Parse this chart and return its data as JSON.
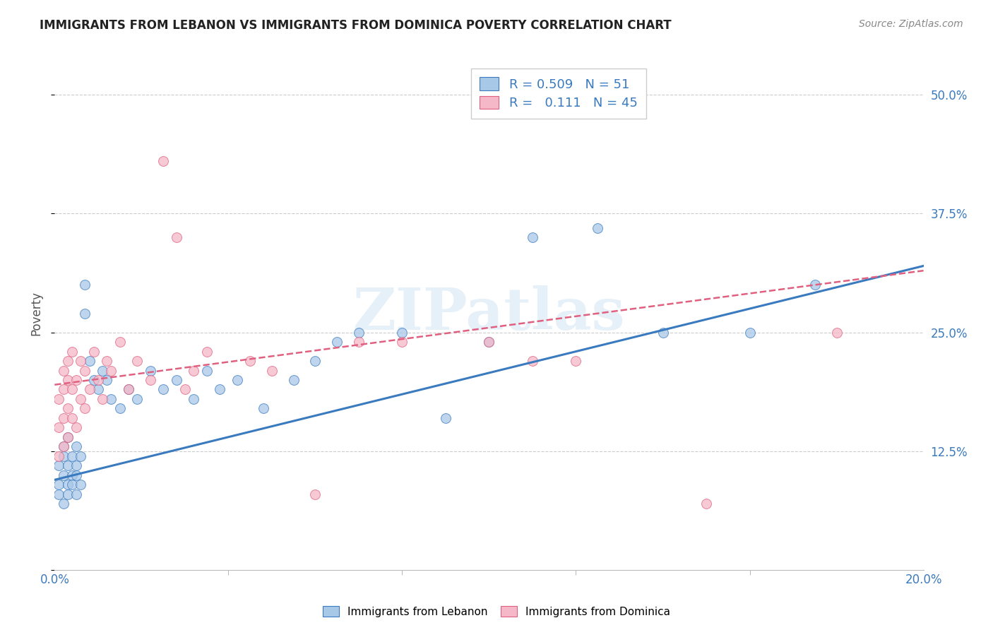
{
  "title": "IMMIGRANTS FROM LEBANON VS IMMIGRANTS FROM DOMINICA POVERTY CORRELATION CHART",
  "source": "Source: ZipAtlas.com",
  "ylabel": "Poverty",
  "xlim": [
    0.0,
    0.2
  ],
  "ylim": [
    0.0,
    0.54
  ],
  "ytick_vals": [
    0.0,
    0.125,
    0.25,
    0.375,
    0.5
  ],
  "ytick_labels_right": [
    "",
    "12.5%",
    "25.0%",
    "37.5%",
    "50.0%"
  ],
  "legend_R1": "0.509",
  "legend_N1": "51",
  "legend_R2": "0.111",
  "legend_N2": "45",
  "color_lebanon": "#a8c8e8",
  "color_dominica": "#f5b8c8",
  "line_color_lebanon": "#3a7abf",
  "line_color_dominica": "#e06080",
  "watermark_text": "ZIPatlas",
  "background_color": "#ffffff",
  "grid_color": "#cccccc",
  "lebanon_x": [
    0.001,
    0.001,
    0.001,
    0.002,
    0.002,
    0.002,
    0.002,
    0.003,
    0.003,
    0.003,
    0.003,
    0.004,
    0.004,
    0.004,
    0.005,
    0.005,
    0.005,
    0.005,
    0.006,
    0.006,
    0.007,
    0.007,
    0.008,
    0.009,
    0.01,
    0.011,
    0.012,
    0.013,
    0.015,
    0.017,
    0.019,
    0.022,
    0.025,
    0.028,
    0.032,
    0.035,
    0.038,
    0.042,
    0.048,
    0.055,
    0.06,
    0.065,
    0.07,
    0.08,
    0.09,
    0.1,
    0.11,
    0.125,
    0.14,
    0.16,
    0.175
  ],
  "lebanon_y": [
    0.09,
    0.11,
    0.08,
    0.1,
    0.12,
    0.07,
    0.13,
    0.09,
    0.11,
    0.08,
    0.14,
    0.1,
    0.12,
    0.09,
    0.11,
    0.13,
    0.08,
    0.1,
    0.12,
    0.09,
    0.3,
    0.27,
    0.22,
    0.2,
    0.19,
    0.21,
    0.2,
    0.18,
    0.17,
    0.19,
    0.18,
    0.21,
    0.19,
    0.2,
    0.18,
    0.21,
    0.19,
    0.2,
    0.17,
    0.2,
    0.22,
    0.24,
    0.25,
    0.25,
    0.16,
    0.24,
    0.35,
    0.36,
    0.25,
    0.25,
    0.3
  ],
  "dominica_x": [
    0.001,
    0.001,
    0.001,
    0.002,
    0.002,
    0.002,
    0.002,
    0.003,
    0.003,
    0.003,
    0.003,
    0.004,
    0.004,
    0.004,
    0.005,
    0.005,
    0.006,
    0.006,
    0.007,
    0.007,
    0.008,
    0.009,
    0.01,
    0.011,
    0.012,
    0.013,
    0.015,
    0.017,
    0.019,
    0.022,
    0.025,
    0.028,
    0.032,
    0.035,
    0.05,
    0.06,
    0.07,
    0.08,
    0.1,
    0.11,
    0.03,
    0.045,
    0.12,
    0.15,
    0.18
  ],
  "dominica_y": [
    0.12,
    0.15,
    0.18,
    0.16,
    0.19,
    0.13,
    0.21,
    0.14,
    0.17,
    0.2,
    0.22,
    0.16,
    0.19,
    0.23,
    0.15,
    0.2,
    0.18,
    0.22,
    0.17,
    0.21,
    0.19,
    0.23,
    0.2,
    0.18,
    0.22,
    0.21,
    0.24,
    0.19,
    0.22,
    0.2,
    0.43,
    0.35,
    0.21,
    0.23,
    0.21,
    0.08,
    0.24,
    0.24,
    0.24,
    0.22,
    0.19,
    0.22,
    0.22,
    0.07,
    0.25
  ],
  "leb_line_x0": 0.0,
  "leb_line_y0": 0.095,
  "leb_line_x1": 0.2,
  "leb_line_y1": 0.32,
  "dom_line_x0": 0.0,
  "dom_line_y0": 0.195,
  "dom_line_x1": 0.2,
  "dom_line_y1": 0.315
}
